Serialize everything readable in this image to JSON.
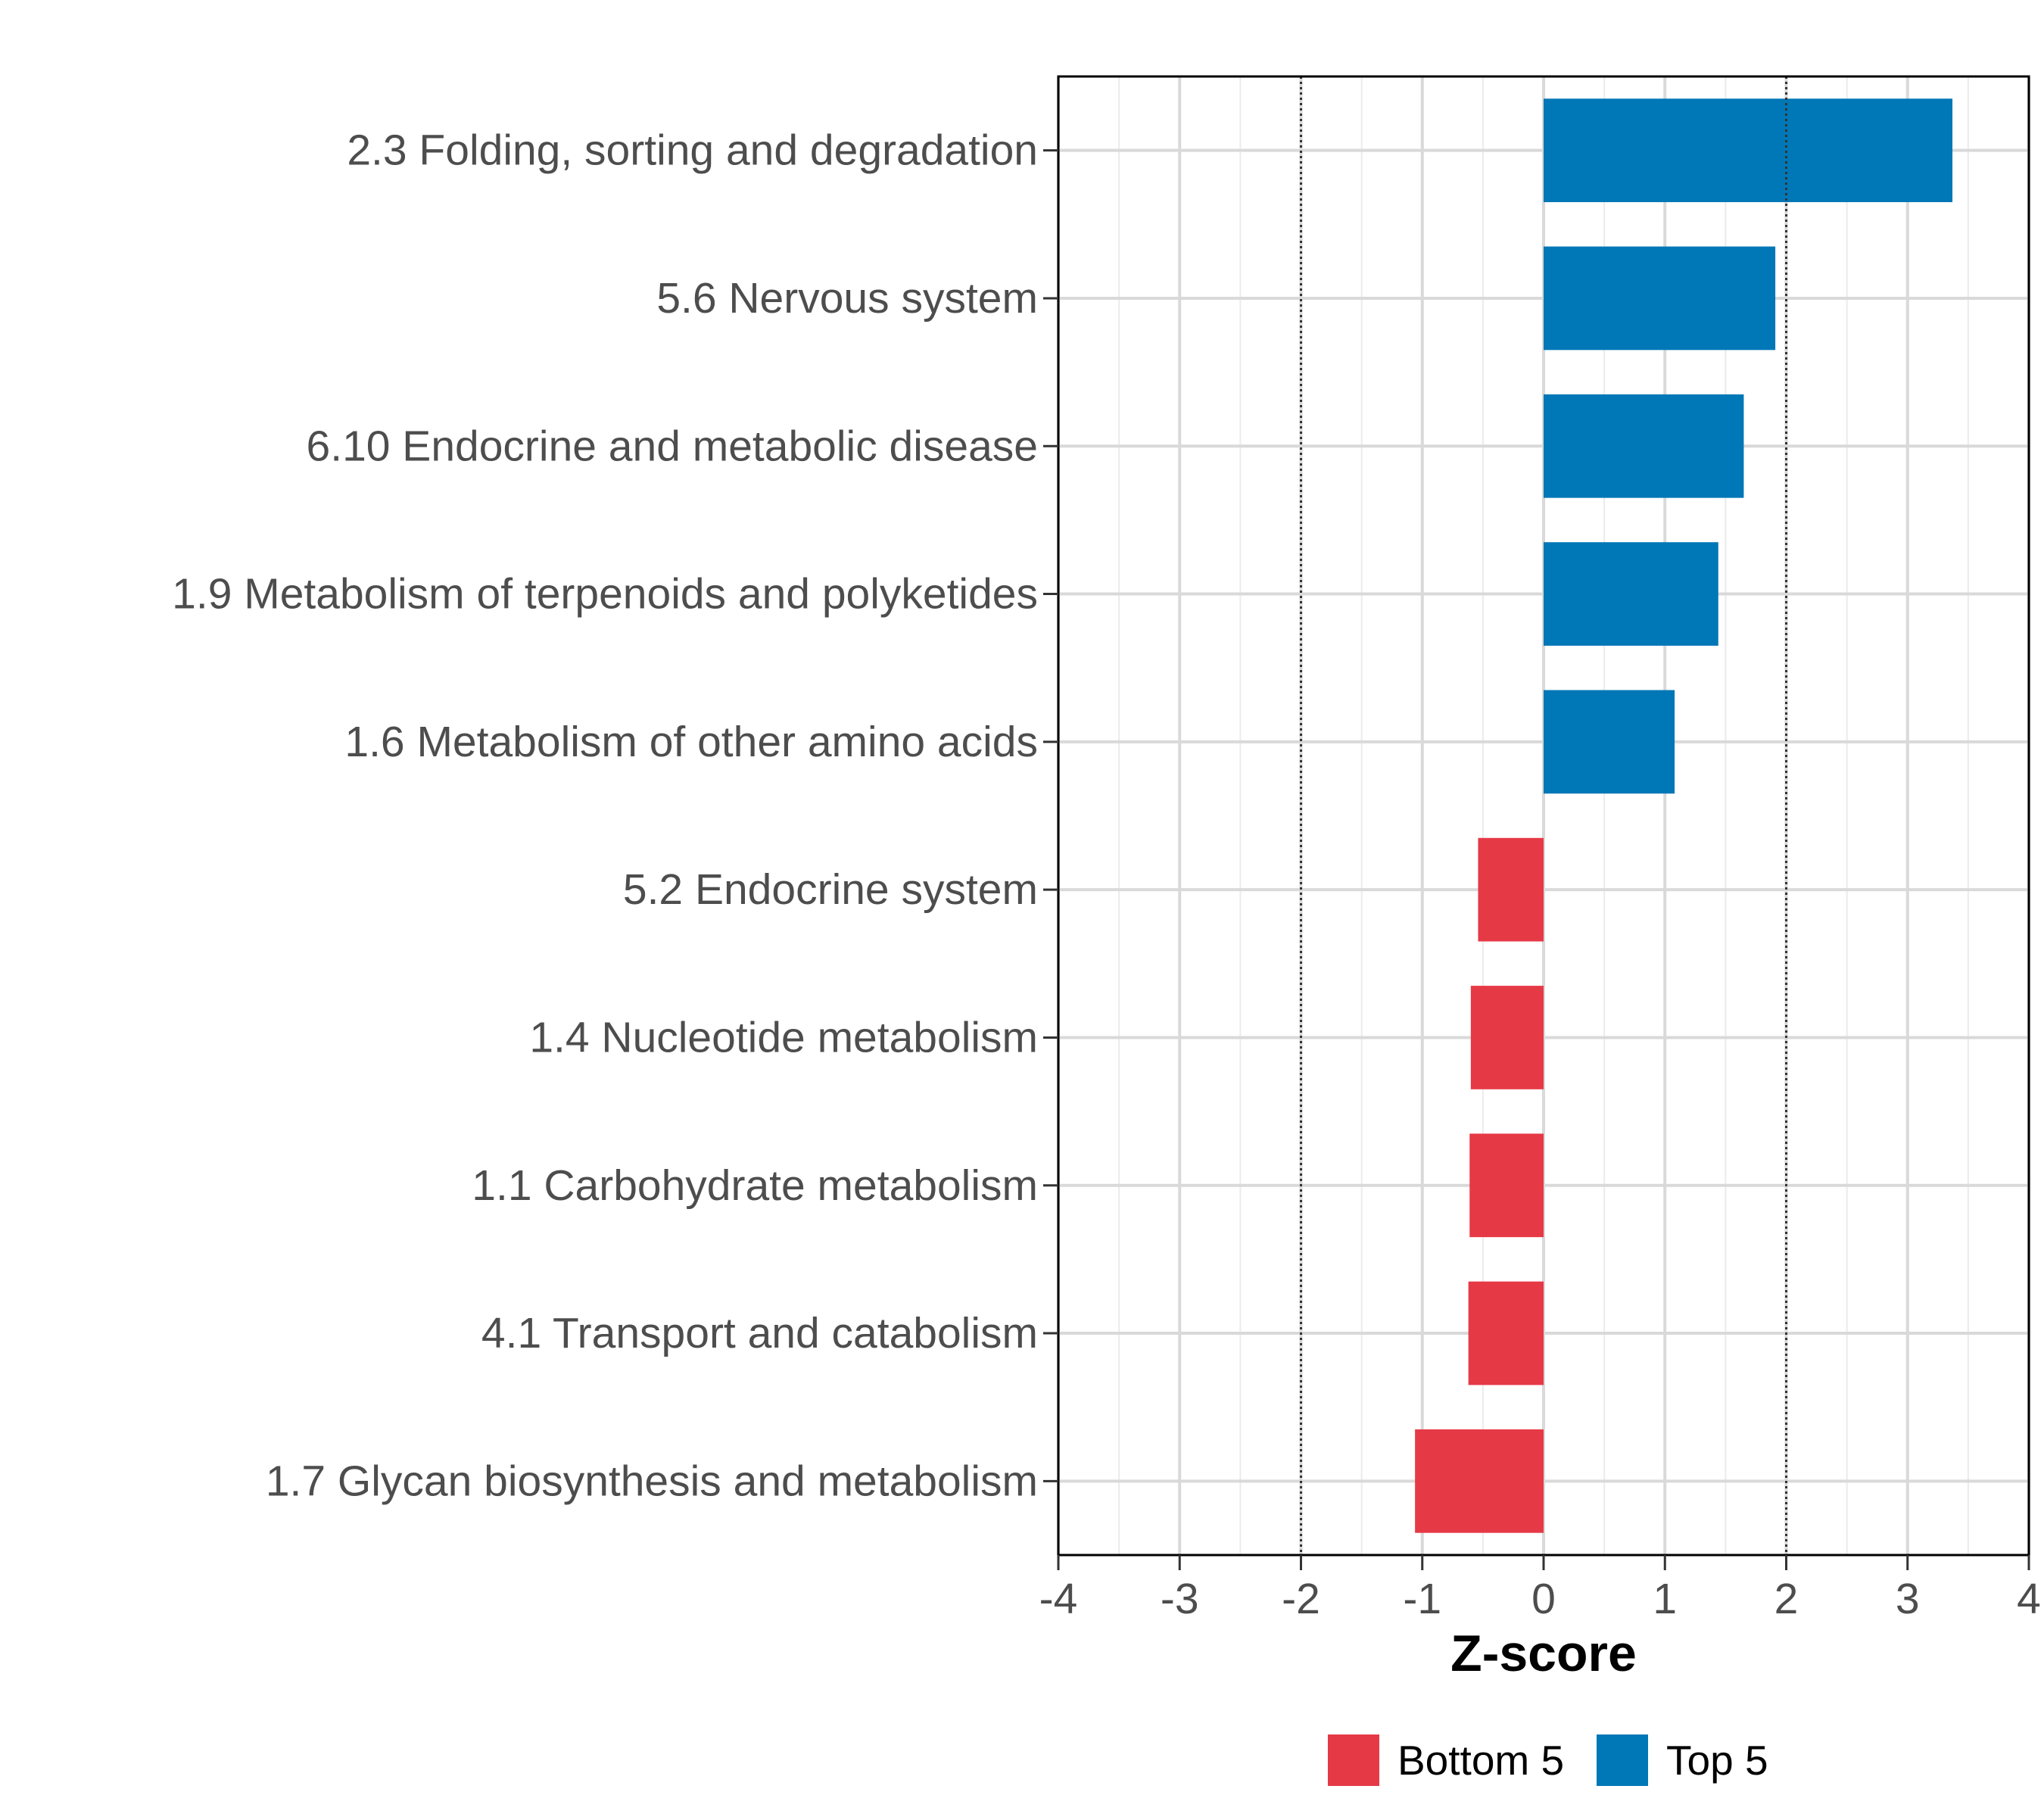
{
  "chart_data": {
    "type": "bar",
    "orientation": "horizontal",
    "title": "",
    "xlabel": "Z-score",
    "ylabel": "",
    "xlim": [
      -4,
      4
    ],
    "x_ticks": [
      -4,
      -3,
      -2,
      -1,
      0,
      1,
      2,
      3,
      4
    ],
    "x_tick_labels": [
      "-4",
      "-3",
      "-2",
      "-1",
      "0",
      "1",
      "2",
      "3",
      "4"
    ],
    "reference_lines": [
      -2,
      2
    ],
    "grid": true,
    "categories": [
      "2.3 Folding, sorting and degradation",
      "5.6 Nervous system",
      "6.10 Endocrine and metabolic disease",
      "1.9 Metabolism of terpenoids and polyketides",
      "1.6 Metabolism of other amino acids",
      "5.2 Endocrine system",
      "1.4 Nucleotide metabolism",
      "1.1 Carbohydrate metabolism",
      "4.1 Transport and catabolism",
      "1.7 Glycan biosynthesis and metabolism"
    ],
    "values": [
      3.37,
      1.91,
      1.65,
      1.44,
      1.08,
      -0.54,
      -0.6,
      -0.61,
      -0.62,
      -1.06
    ],
    "groups": [
      "Top 5",
      "Top 5",
      "Top 5",
      "Top 5",
      "Top 5",
      "Bottom 5",
      "Bottom 5",
      "Bottom 5",
      "Bottom 5",
      "Bottom 5"
    ],
    "legend": [
      {
        "name": "Bottom 5",
        "color": "#e63946"
      },
      {
        "name": "Top 5",
        "color": "#0077b6"
      }
    ],
    "legend_position": "bottom"
  }
}
